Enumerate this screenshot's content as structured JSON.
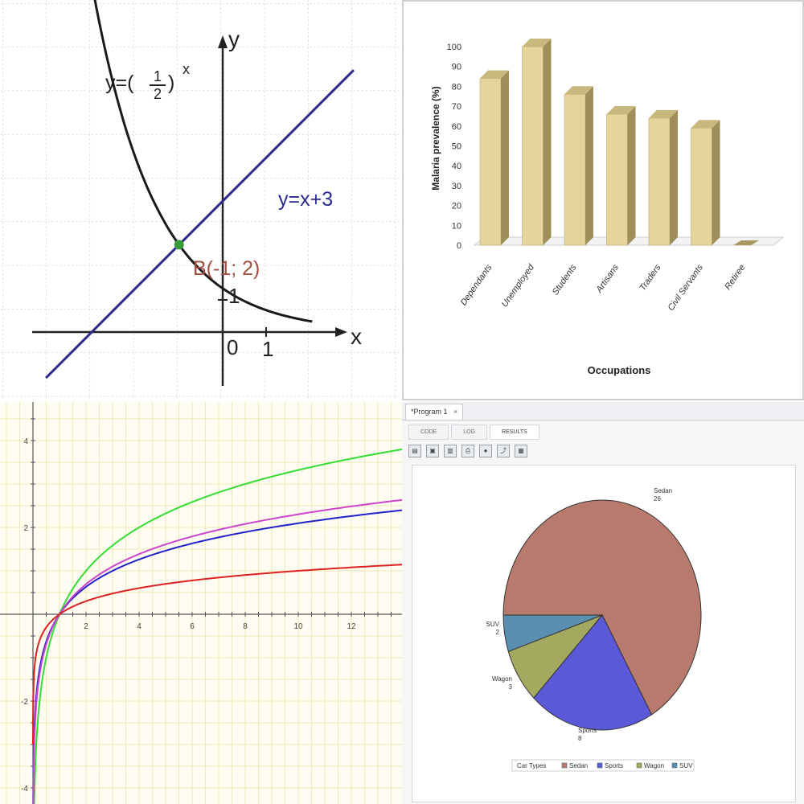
{
  "panel1": {
    "y_axis_label": "y",
    "x_axis_label": "x",
    "curve_label_prefix": "y=(",
    "curve_label_num": "1",
    "curve_label_den": "2",
    "curve_label_suffix": ")",
    "curve_label_exp": "x",
    "line_label": "y=x+3",
    "point_label": "B(-1; 2)",
    "origin_label": "0",
    "x_tick_label": "1",
    "y_tick_label": "1",
    "colors": {
      "curve": "#1a1a1a",
      "line": "#2a2a8c",
      "point": "#3a9a3a",
      "point_label": "#a05040"
    }
  },
  "chart_data": [
    {
      "type": "bar",
      "title": "",
      "xlabel": "Occupations",
      "ylabel": "Malaria prevalence (%)",
      "ylim": [
        0,
        100
      ],
      "yticks": [
        0,
        10,
        20,
        30,
        40,
        50,
        60,
        70,
        80,
        90,
        100
      ],
      "categories": [
        "Dependants",
        "Unemployed",
        "Students",
        "Artisans",
        "Traders",
        "Civil Servants",
        "Retiree"
      ],
      "values": [
        84,
        100,
        76,
        66,
        64,
        59,
        0
      ],
      "bar_color": "#e6d49a",
      "grid": false
    },
    {
      "type": "line",
      "xlabel": "",
      "ylabel": "",
      "xlim": [
        0,
        14
      ],
      "ylim": [
        -4.4,
        4.8
      ],
      "xticks": [
        2,
        4,
        6,
        8,
        10,
        12
      ],
      "yticks": [
        -4,
        -2,
        2,
        4
      ],
      "grid": true,
      "series": [
        {
          "function": "log2(x)",
          "color": "#33dd33"
        },
        {
          "function": "log3(x)",
          "color": "#2222cc"
        },
        {
          "function": "log(x)",
          "color": "#cc44cc"
        },
        {
          "function": "log10(x)",
          "color": "#dd2222"
        }
      ]
    },
    {
      "type": "pie",
      "categories": [
        "Sedan",
        "Sports",
        "Wagon",
        "SUV"
      ],
      "values": [
        26,
        8,
        3,
        2
      ],
      "colors": [
        "#b77a6c",
        "#5a5ad8",
        "#a3a95f",
        "#5b8fb2"
      ],
      "legend": {
        "title": "Car Types",
        "placement": "bottom"
      }
    }
  ],
  "panel3": {
    "x_tick_labels": [
      "2",
      "4",
      "6",
      "8",
      "10",
      "12"
    ],
    "y_tick_labels": [
      "4",
      "2",
      "-2",
      "-4"
    ]
  },
  "panel4": {
    "window_tab_label": "*Program 1",
    "subtabs": [
      "CODE",
      "LOG",
      "RESULTS"
    ],
    "active_subtab": "RESULTS",
    "toolbar_icons": [
      "save-icon",
      "copy-icon",
      "export-icon",
      "print-icon",
      "person-icon",
      "graph-icon",
      "grid-icon"
    ],
    "slice_labels": [
      {
        "name": "Sedan",
        "value": "26"
      },
      {
        "name": "Sports",
        "value": "8"
      },
      {
        "name": "Wagon",
        "value": "3"
      },
      {
        "name": "SUV",
        "value": "2"
      }
    ]
  }
}
